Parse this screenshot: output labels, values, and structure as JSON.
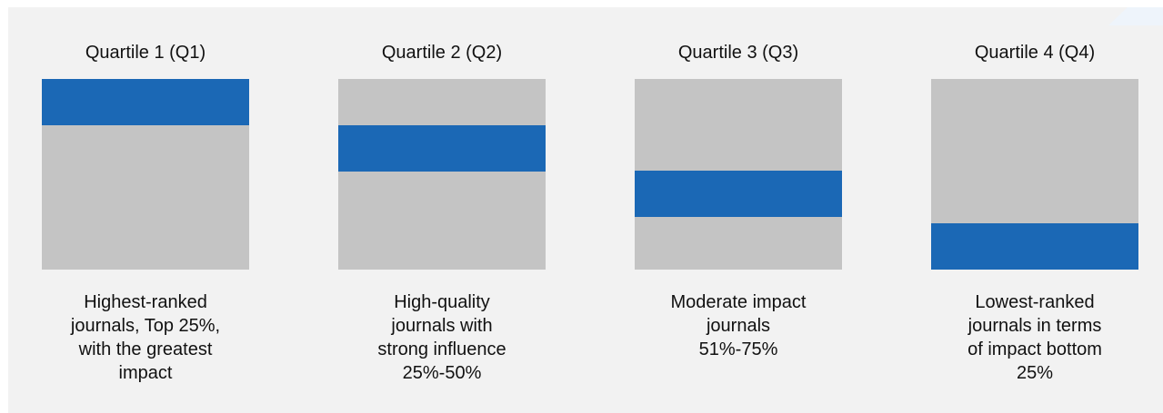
{
  "quartiles": [
    {
      "title": "Quartile 1 (Q1)",
      "description_lines": [
        "Highest-ranked",
        "journals, Top 25%,",
        "with the greatest",
        "impact"
      ]
    },
    {
      "title": "Quartile 2 (Q2)",
      "description_lines": [
        "High-quality",
        "journals with",
        "strong influence",
        "25%-50%"
      ]
    },
    {
      "title": "Quartile 3 (Q3)",
      "description_lines": [
        "Moderate impact",
        "journals",
        "51%-75%"
      ]
    },
    {
      "title": "Quartile 4 (Q4)",
      "description_lines": [
        "Lowest-ranked",
        "journals in terms",
        "of impact bottom",
        "25%"
      ]
    }
  ],
  "colors": {
    "background": "#f2f2f2",
    "box": "#c4c4c4",
    "band": "#1b68b5",
    "text": "#111111"
  }
}
